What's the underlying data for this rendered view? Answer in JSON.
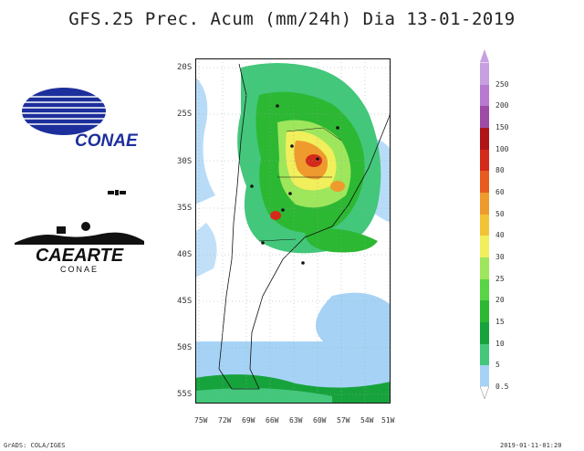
{
  "title": "GFS.25 Prec. Acum (mm/24h) Dia 13-01-2019",
  "lat_ticks": [
    "20S",
    "25S",
    "30S",
    "35S",
    "40S",
    "45S",
    "50S",
    "55S"
  ],
  "lon_ticks": [
    "75W",
    "72W",
    "69W",
    "66W",
    "63W",
    "60W",
    "57W",
    "54W",
    "51W"
  ],
  "colorbar": {
    "levels": [
      "0.5",
      "5",
      "10",
      "15",
      "20",
      "25",
      "30",
      "40",
      "50",
      "60",
      "80",
      "100",
      "150",
      "200",
      "250"
    ],
    "colors": [
      "#a6d3f5",
      "#43c77b",
      "#17a33c",
      "#2cb832",
      "#5ad447",
      "#9ee65c",
      "#f1ef5b",
      "#f3c336",
      "#ef9a2d",
      "#e85b1f",
      "#d42a1a",
      "#b01417",
      "#9e4ba6",
      "#b87ad1",
      "#c6a0e0"
    ]
  },
  "logos": {
    "conae": "CONAE",
    "caearte": "CAEARTE",
    "caearte_sub": "CONAE"
  },
  "footer": {
    "left": "GrADS: COLA/IGES",
    "right": "2019-01-11-01:20"
  }
}
